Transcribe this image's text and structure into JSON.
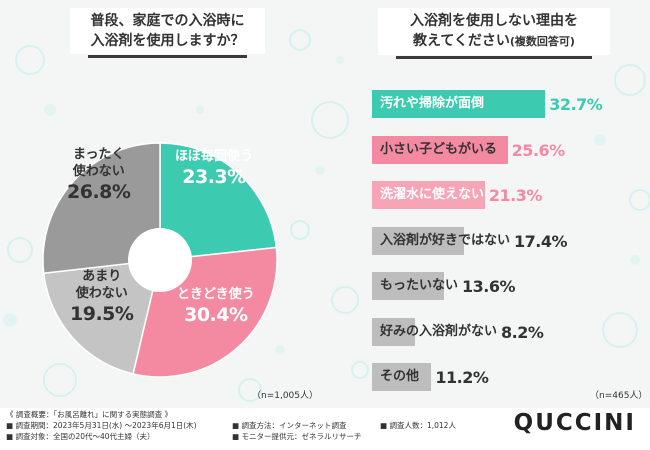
{
  "left_title": {
    "line1": "普段、家庭での入浴時に",
    "line2": "入浴剤を使用しますか？"
  },
  "right_title": {
    "line1": "入浴剤を使用しない理由を",
    "line2_main": "教えてください",
    "line2_sub": "(複数回答可)"
  },
  "chart_data": [
    {
      "type": "pie",
      "categories": [
        "ほぼ毎回使う",
        "ときどき使う",
        "あまり使わない",
        "まったく使わない"
      ],
      "values": [
        23.3,
        30.4,
        19.5,
        26.8
      ],
      "value_labels": [
        "23.3%",
        "30.4%",
        "19.5%",
        "26.8%"
      ],
      "colors": [
        "#3ccbb0",
        "#f48aa2",
        "#c4c4c4",
        "#9a9a9a"
      ],
      "donut": true,
      "note": "（n=1,005人）"
    },
    {
      "type": "bar",
      "orientation": "horizontal",
      "categories": [
        "汚れや掃除が面倒",
        "小さい子どもがいる",
        "洗濯水に使えない",
        "入浴剤が好きではない",
        "もったいない",
        "好みの入浴剤がない",
        "その他"
      ],
      "values": [
        32.7,
        25.6,
        21.3,
        17.4,
        13.6,
        8.2,
        11.2
      ],
      "value_labels": [
        "32.7%",
        "25.6%",
        "21.3%",
        "17.4%",
        "13.6%",
        "8.2%",
        "11.2%"
      ],
      "bar_colors": [
        "#3ccbb0",
        "#f48aa2",
        "#f7a4b6",
        "#bdbdbd",
        "#bdbdbd",
        "#bdbdbd",
        "#bdbdbd"
      ],
      "label_colors": [
        "#ffffff",
        "#333333",
        "#ffffff",
        "#333333",
        "#333333",
        "#333333",
        "#333333"
      ],
      "value_colors": [
        "#3ccbb0",
        "#f48aa2",
        "#f48aa2",
        "#333333",
        "#333333",
        "#333333",
        "#333333"
      ],
      "note": "（n=465人）"
    }
  ],
  "footer": {
    "overview": "《 調査概要：「お風呂離れ」に関する実態調査 》",
    "period": "■ 調査期間：2023年5月31日(水) ～2023年6月1日(木)",
    "target": "■ 調査対象：全国の20代～40代主婦（夫）",
    "method": "■ 調査方法：インターネット調査",
    "provider": "■ モニター提供元：ゼネラルリサーチ",
    "count": "■ 調査人数：1,012人"
  },
  "brand": "QUCCINI"
}
